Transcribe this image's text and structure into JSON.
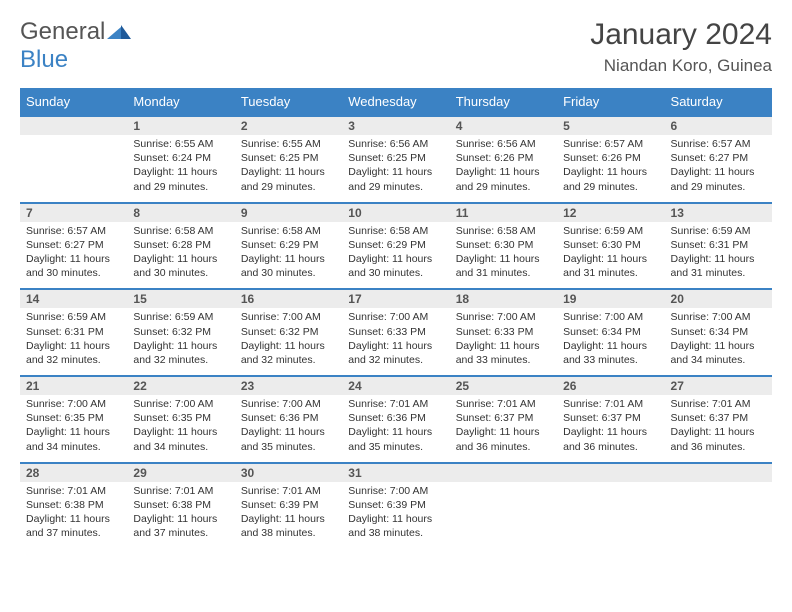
{
  "brand": {
    "word1": "General",
    "word2": "Blue",
    "logo_color": "#3b82c4"
  },
  "title": "January 2024",
  "location": "Niandan Koro, Guinea",
  "day_headers": [
    "Sunday",
    "Monday",
    "Tuesday",
    "Wednesday",
    "Thursday",
    "Friday",
    "Saturday"
  ],
  "header_bg": "#3b82c4",
  "weeks": [
    {
      "days": [
        null,
        {
          "n": "1",
          "sr": "Sunrise: 6:55 AM",
          "ss": "Sunset: 6:24 PM",
          "d1": "Daylight: 11 hours",
          "d2": "and 29 minutes."
        },
        {
          "n": "2",
          "sr": "Sunrise: 6:55 AM",
          "ss": "Sunset: 6:25 PM",
          "d1": "Daylight: 11 hours",
          "d2": "and 29 minutes."
        },
        {
          "n": "3",
          "sr": "Sunrise: 6:56 AM",
          "ss": "Sunset: 6:25 PM",
          "d1": "Daylight: 11 hours",
          "d2": "and 29 minutes."
        },
        {
          "n": "4",
          "sr": "Sunrise: 6:56 AM",
          "ss": "Sunset: 6:26 PM",
          "d1": "Daylight: 11 hours",
          "d2": "and 29 minutes."
        },
        {
          "n": "5",
          "sr": "Sunrise: 6:57 AM",
          "ss": "Sunset: 6:26 PM",
          "d1": "Daylight: 11 hours",
          "d2": "and 29 minutes."
        },
        {
          "n": "6",
          "sr": "Sunrise: 6:57 AM",
          "ss": "Sunset: 6:27 PM",
          "d1": "Daylight: 11 hours",
          "d2": "and 29 minutes."
        }
      ]
    },
    {
      "days": [
        {
          "n": "7",
          "sr": "Sunrise: 6:57 AM",
          "ss": "Sunset: 6:27 PM",
          "d1": "Daylight: 11 hours",
          "d2": "and 30 minutes."
        },
        {
          "n": "8",
          "sr": "Sunrise: 6:58 AM",
          "ss": "Sunset: 6:28 PM",
          "d1": "Daylight: 11 hours",
          "d2": "and 30 minutes."
        },
        {
          "n": "9",
          "sr": "Sunrise: 6:58 AM",
          "ss": "Sunset: 6:29 PM",
          "d1": "Daylight: 11 hours",
          "d2": "and 30 minutes."
        },
        {
          "n": "10",
          "sr": "Sunrise: 6:58 AM",
          "ss": "Sunset: 6:29 PM",
          "d1": "Daylight: 11 hours",
          "d2": "and 30 minutes."
        },
        {
          "n": "11",
          "sr": "Sunrise: 6:58 AM",
          "ss": "Sunset: 6:30 PM",
          "d1": "Daylight: 11 hours",
          "d2": "and 31 minutes."
        },
        {
          "n": "12",
          "sr": "Sunrise: 6:59 AM",
          "ss": "Sunset: 6:30 PM",
          "d1": "Daylight: 11 hours",
          "d2": "and 31 minutes."
        },
        {
          "n": "13",
          "sr": "Sunrise: 6:59 AM",
          "ss": "Sunset: 6:31 PM",
          "d1": "Daylight: 11 hours",
          "d2": "and 31 minutes."
        }
      ]
    },
    {
      "days": [
        {
          "n": "14",
          "sr": "Sunrise: 6:59 AM",
          "ss": "Sunset: 6:31 PM",
          "d1": "Daylight: 11 hours",
          "d2": "and 32 minutes."
        },
        {
          "n": "15",
          "sr": "Sunrise: 6:59 AM",
          "ss": "Sunset: 6:32 PM",
          "d1": "Daylight: 11 hours",
          "d2": "and 32 minutes."
        },
        {
          "n": "16",
          "sr": "Sunrise: 7:00 AM",
          "ss": "Sunset: 6:32 PM",
          "d1": "Daylight: 11 hours",
          "d2": "and 32 minutes."
        },
        {
          "n": "17",
          "sr": "Sunrise: 7:00 AM",
          "ss": "Sunset: 6:33 PM",
          "d1": "Daylight: 11 hours",
          "d2": "and 32 minutes."
        },
        {
          "n": "18",
          "sr": "Sunrise: 7:00 AM",
          "ss": "Sunset: 6:33 PM",
          "d1": "Daylight: 11 hours",
          "d2": "and 33 minutes."
        },
        {
          "n": "19",
          "sr": "Sunrise: 7:00 AM",
          "ss": "Sunset: 6:34 PM",
          "d1": "Daylight: 11 hours",
          "d2": "and 33 minutes."
        },
        {
          "n": "20",
          "sr": "Sunrise: 7:00 AM",
          "ss": "Sunset: 6:34 PM",
          "d1": "Daylight: 11 hours",
          "d2": "and 34 minutes."
        }
      ]
    },
    {
      "days": [
        {
          "n": "21",
          "sr": "Sunrise: 7:00 AM",
          "ss": "Sunset: 6:35 PM",
          "d1": "Daylight: 11 hours",
          "d2": "and 34 minutes."
        },
        {
          "n": "22",
          "sr": "Sunrise: 7:00 AM",
          "ss": "Sunset: 6:35 PM",
          "d1": "Daylight: 11 hours",
          "d2": "and 34 minutes."
        },
        {
          "n": "23",
          "sr": "Sunrise: 7:00 AM",
          "ss": "Sunset: 6:36 PM",
          "d1": "Daylight: 11 hours",
          "d2": "and 35 minutes."
        },
        {
          "n": "24",
          "sr": "Sunrise: 7:01 AM",
          "ss": "Sunset: 6:36 PM",
          "d1": "Daylight: 11 hours",
          "d2": "and 35 minutes."
        },
        {
          "n": "25",
          "sr": "Sunrise: 7:01 AM",
          "ss": "Sunset: 6:37 PM",
          "d1": "Daylight: 11 hours",
          "d2": "and 36 minutes."
        },
        {
          "n": "26",
          "sr": "Sunrise: 7:01 AM",
          "ss": "Sunset: 6:37 PM",
          "d1": "Daylight: 11 hours",
          "d2": "and 36 minutes."
        },
        {
          "n": "27",
          "sr": "Sunrise: 7:01 AM",
          "ss": "Sunset: 6:37 PM",
          "d1": "Daylight: 11 hours",
          "d2": "and 36 minutes."
        }
      ]
    },
    {
      "days": [
        {
          "n": "28",
          "sr": "Sunrise: 7:01 AM",
          "ss": "Sunset: 6:38 PM",
          "d1": "Daylight: 11 hours",
          "d2": "and 37 minutes."
        },
        {
          "n": "29",
          "sr": "Sunrise: 7:01 AM",
          "ss": "Sunset: 6:38 PM",
          "d1": "Daylight: 11 hours",
          "d2": "and 37 minutes."
        },
        {
          "n": "30",
          "sr": "Sunrise: 7:01 AM",
          "ss": "Sunset: 6:39 PM",
          "d1": "Daylight: 11 hours",
          "d2": "and 38 minutes."
        },
        {
          "n": "31",
          "sr": "Sunrise: 7:00 AM",
          "ss": "Sunset: 6:39 PM",
          "d1": "Daylight: 11 hours",
          "d2": "and 38 minutes."
        },
        null,
        null,
        null
      ]
    }
  ]
}
